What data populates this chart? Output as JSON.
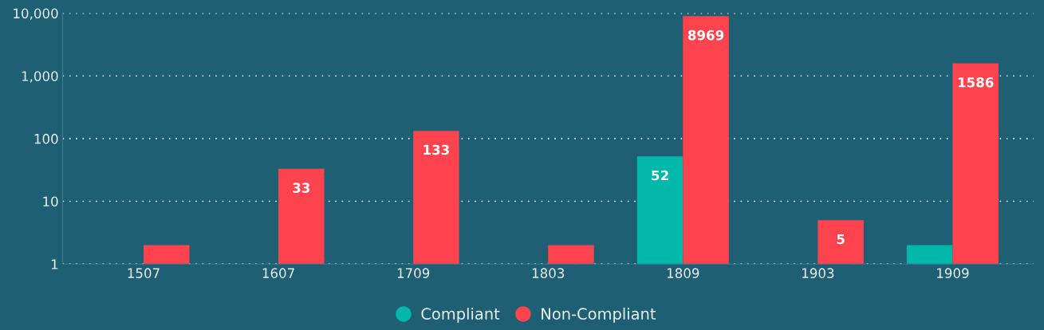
{
  "chart_data": {
    "type": "bar",
    "categories": [
      "1507",
      "1607",
      "1709",
      "1803",
      "1809",
      "1903",
      "1909"
    ],
    "series": [
      {
        "name": "Compliant",
        "color": "#01b8aa",
        "values": [
          null,
          null,
          null,
          null,
          52,
          null,
          2
        ],
        "value_labels": [
          null,
          null,
          null,
          null,
          "52",
          null,
          null
        ]
      },
      {
        "name": "Non-Compliant",
        "color": "#fd434d",
        "values": [
          2,
          33,
          133,
          2,
          8969,
          5,
          1586
        ],
        "value_labels": [
          null,
          "33",
          "133",
          null,
          "8969",
          "5",
          "1586"
        ]
      }
    ],
    "log": "y",
    "ylim": [
      1,
      10000
    ],
    "yticks": [
      1,
      10,
      100,
      {
        "value": 1000,
        "label": "1,000"
      },
      {
        "value": 10000,
        "label": "10,000"
      }
    ],
    "grid": "y",
    "legend": "bottom"
  }
}
